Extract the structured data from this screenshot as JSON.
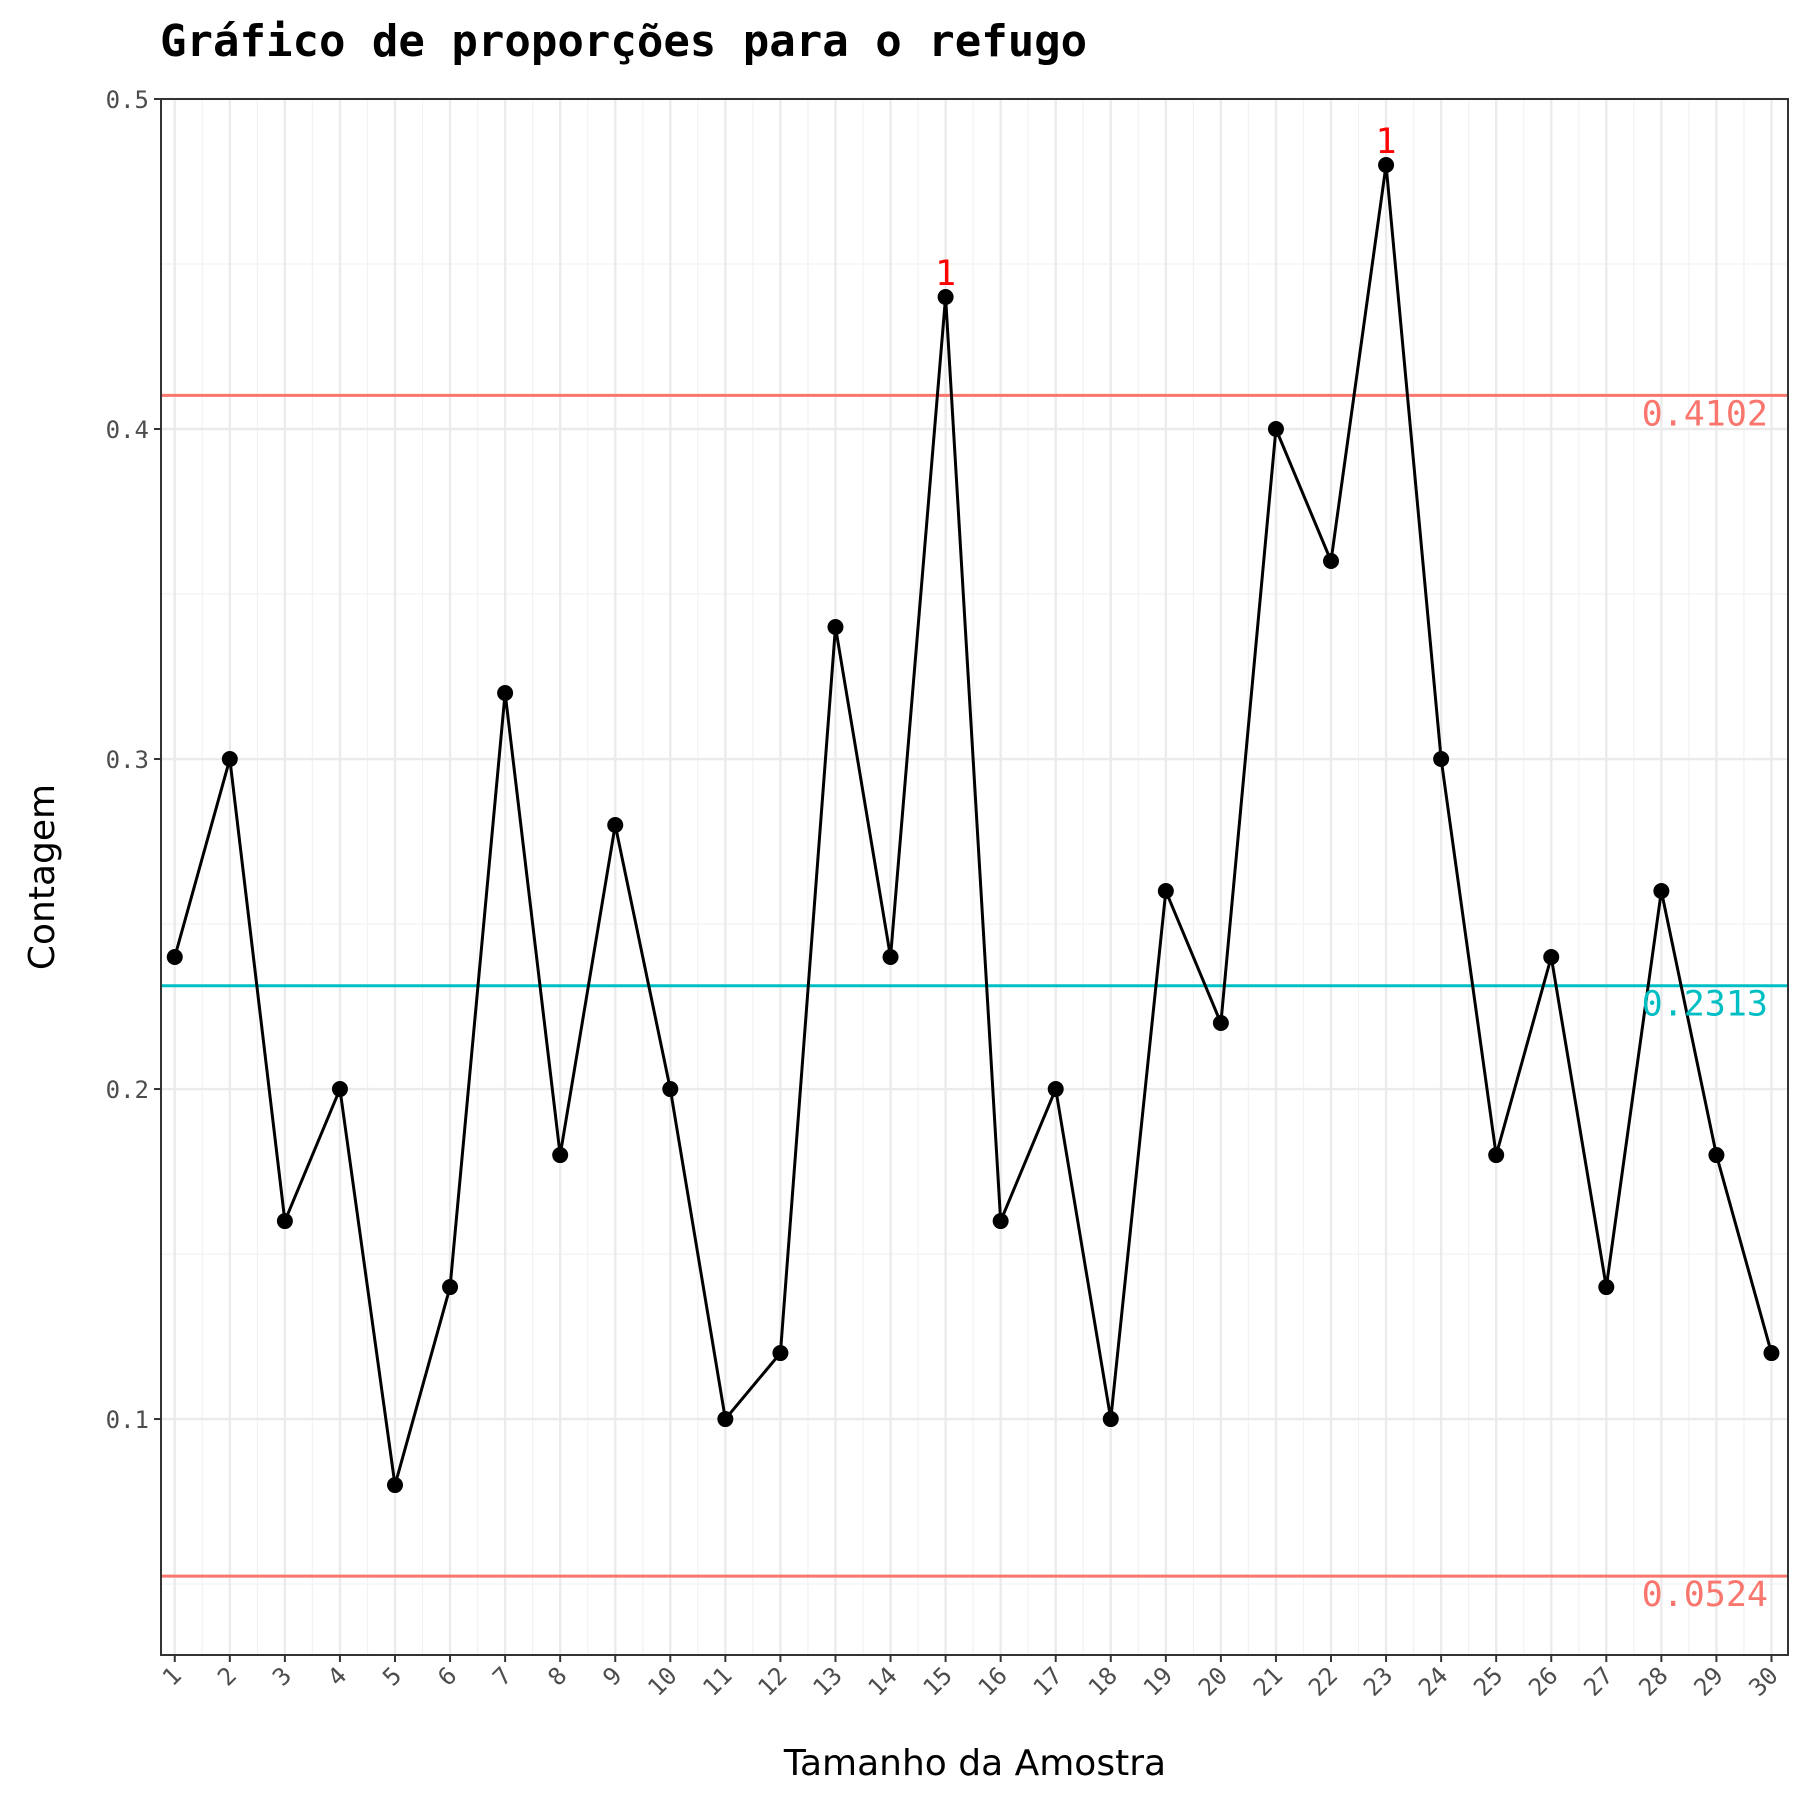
{
  "chart_data": {
    "type": "line",
    "title": "Gráfico de proporções para o refugo",
    "xlabel": "Tamanho da Amostra",
    "ylabel": "Contagem",
    "x": [
      1,
      2,
      3,
      4,
      5,
      6,
      7,
      8,
      9,
      10,
      11,
      12,
      13,
      14,
      15,
      16,
      17,
      18,
      19,
      20,
      21,
      22,
      23,
      24,
      25,
      26,
      27,
      28,
      29,
      30
    ],
    "x_tick_labels": [
      "1",
      "2",
      "3",
      "4",
      "5",
      "6",
      "7",
      "8",
      "9",
      "10",
      "11",
      "12",
      "13",
      "14",
      "15",
      "16",
      "17",
      "18",
      "19",
      "20",
      "21",
      "22",
      "23",
      "24",
      "25",
      "26",
      "27",
      "28",
      "29",
      "30"
    ],
    "values": [
      0.24,
      0.3,
      0.16,
      0.2,
      0.08,
      0.14,
      0.32,
      0.18,
      0.28,
      0.2,
      0.1,
      0.12,
      0.34,
      0.24,
      0.44,
      0.16,
      0.2,
      0.1,
      0.26,
      0.22,
      0.4,
      0.36,
      0.48,
      0.3,
      0.18,
      0.24,
      0.14,
      0.26,
      0.18,
      0.12
    ],
    "y_ticks": [
      0.1,
      0.2,
      0.3,
      0.4,
      0.5
    ],
    "y_tick_labels": [
      "0.1",
      "0.2",
      "0.3",
      "0.4",
      "0.5"
    ],
    "ylim": [
      0.0285,
      0.5
    ],
    "xlim": [
      0.75,
      30.3
    ],
    "grid": true,
    "control_limits": [
      {
        "name": "ucl",
        "value": 0.4102,
        "label": "0.4102",
        "color": "#f8766d"
      },
      {
        "name": "center",
        "value": 0.2313,
        "label": "0.2313",
        "color": "#00bfc4"
      },
      {
        "name": "lcl",
        "value": 0.0524,
        "label": "0.0524",
        "color": "#f8766d"
      }
    ],
    "flags": [
      {
        "x": 15,
        "label": "1",
        "color": "#ff0000"
      },
      {
        "x": 23,
        "label": "1",
        "color": "#ff0000"
      }
    ],
    "line_color": "#000000",
    "point_color": "#000000"
  }
}
